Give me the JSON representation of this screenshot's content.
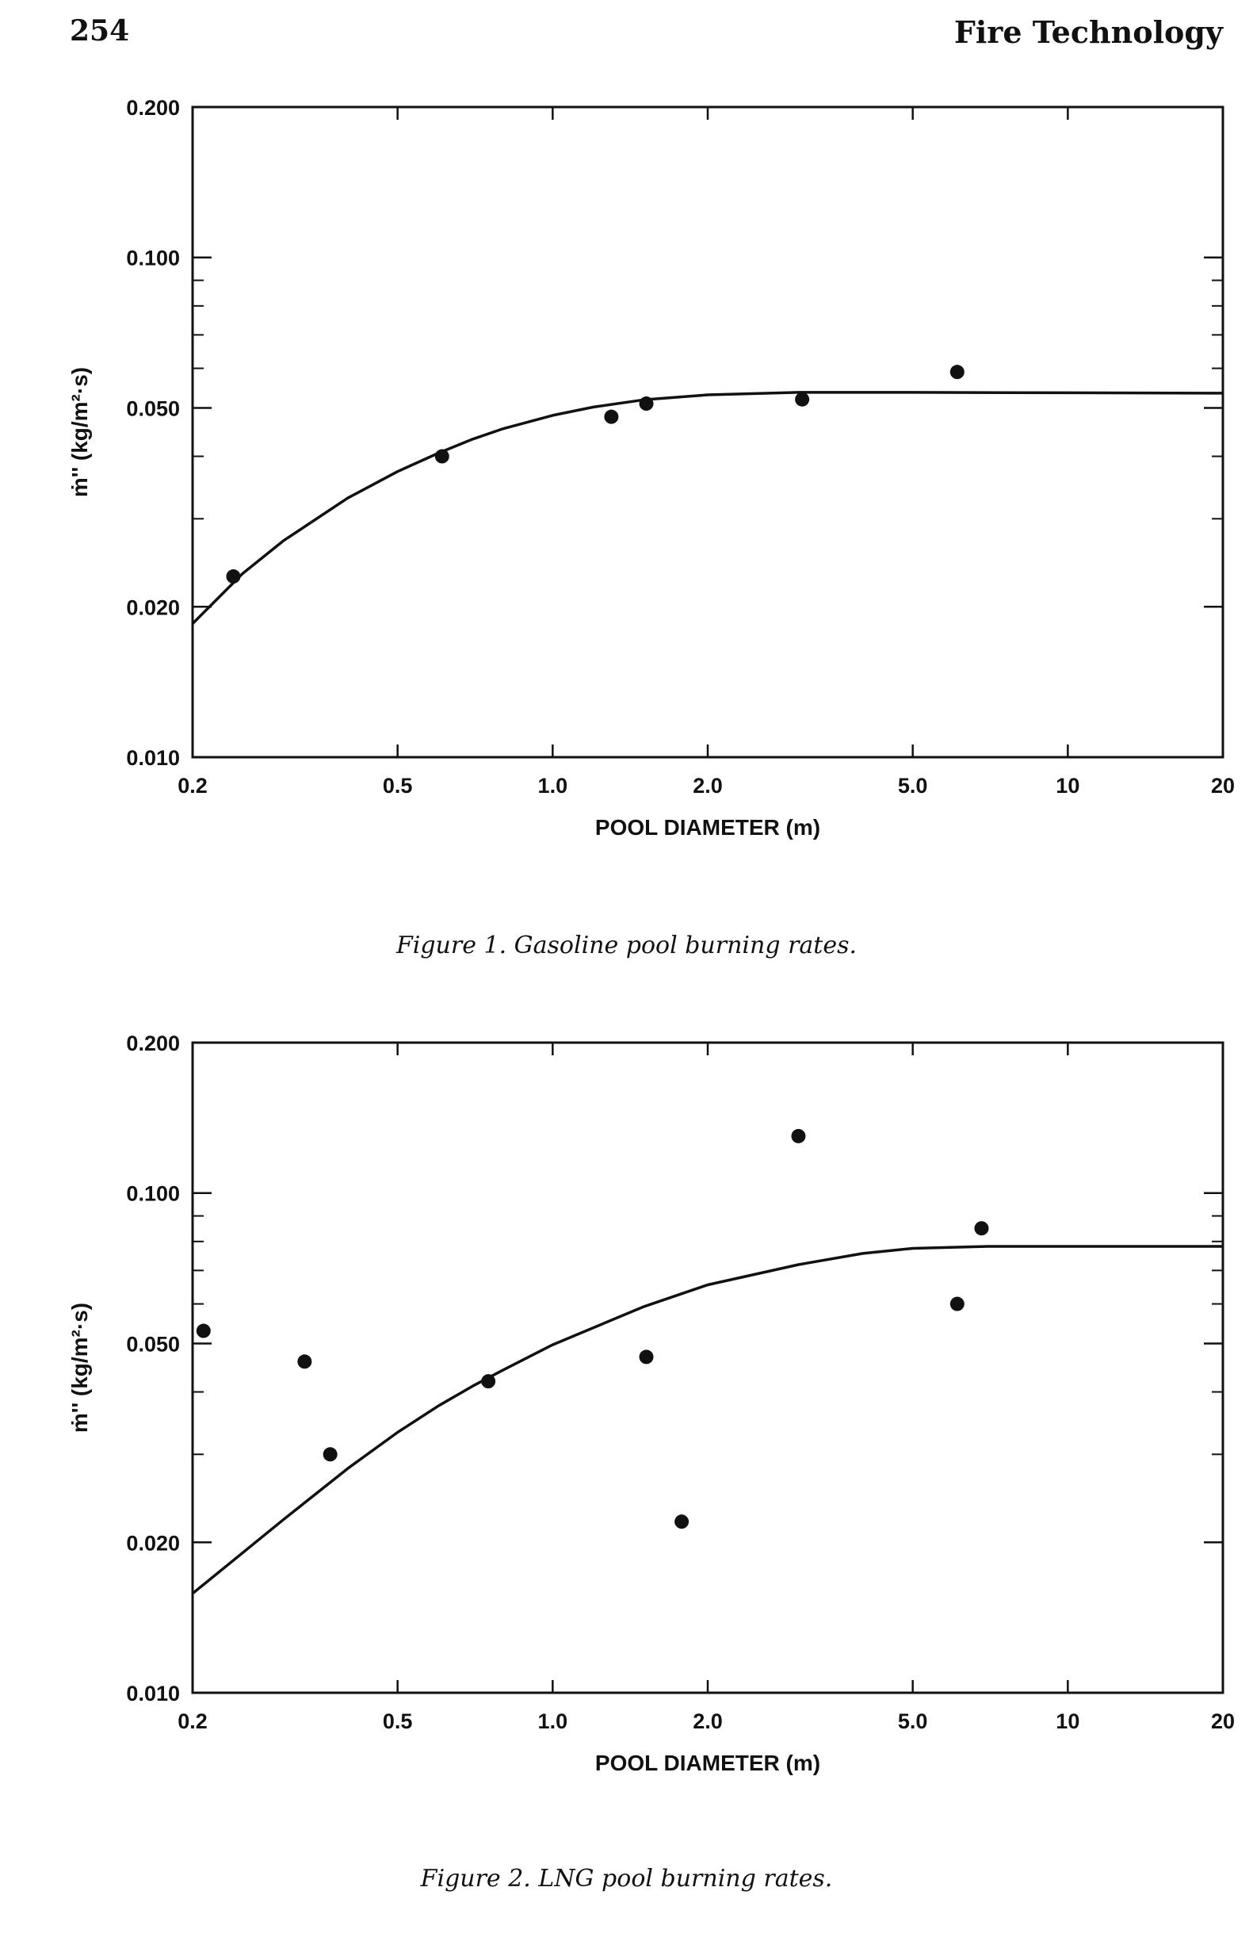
{
  "header": {
    "page_number": "254",
    "journal": "Fire Technology"
  },
  "figures": [
    {
      "caption": "Figure 1.  Gasoline pool burning rates."
    },
    {
      "caption": "Figure 2.  LNG pool burning rates."
    }
  ],
  "chart_data": [
    {
      "type": "scatter",
      "title": "",
      "xlabel": "POOL DIAMETER (m)",
      "ylabel": "ṁ'' (kg/m²·s)",
      "xscale": "log",
      "yscale": "log",
      "xlim": [
        0.2,
        20
      ],
      "ylim": [
        0.01,
        0.2
      ],
      "xticks": [
        0.2,
        0.5,
        1.0,
        2.0,
        5.0,
        10,
        20
      ],
      "xtick_labels": [
        "0.2",
        "0.5",
        "1.0",
        "2.0",
        "5.0",
        "10",
        "20"
      ],
      "yticks": [
        0.01,
        0.02,
        0.05,
        0.1,
        0.2
      ],
      "ytick_labels": [
        "0.010",
        "0.020",
        "0.050",
        "0.100",
        "0.200"
      ],
      "grid": false,
      "points": [
        {
          "x": 0.24,
          "y": 0.023
        },
        {
          "x": 0.61,
          "y": 0.04
        },
        {
          "x": 1.3,
          "y": 0.048
        },
        {
          "x": 1.52,
          "y": 0.051
        },
        {
          "x": 3.05,
          "y": 0.052
        },
        {
          "x": 6.1,
          "y": 0.059
        }
      ],
      "curve": {
        "x": [
          0.2,
          0.25,
          0.3,
          0.4,
          0.5,
          0.6,
          0.7,
          0.8,
          1.0,
          1.2,
          1.5,
          2.0,
          3.0,
          5.0,
          10,
          20
        ],
        "y": [
          0.0185,
          0.0233,
          0.0271,
          0.033,
          0.0373,
          0.0406,
          0.0433,
          0.0454,
          0.0483,
          0.0502,
          0.0519,
          0.0531,
          0.0537,
          0.0537,
          0.0536,
          0.0535
        ]
      }
    },
    {
      "type": "scatter",
      "title": "",
      "xlabel": "POOL DIAMETER (m)",
      "ylabel": "ṁ'' (kg/m²·s)",
      "xscale": "log",
      "yscale": "log",
      "xlim": [
        0.2,
        20
      ],
      "ylim": [
        0.01,
        0.2
      ],
      "xticks": [
        0.2,
        0.5,
        1.0,
        2.0,
        5.0,
        10,
        20
      ],
      "xtick_labels": [
        "0.2",
        "0.5",
        "1.0",
        "2.0",
        "5.0",
        "10",
        "20"
      ],
      "yticks": [
        0.01,
        0.02,
        0.05,
        0.1,
        0.2
      ],
      "ytick_labels": [
        "0.010",
        "0.020",
        "0.050",
        "0.100",
        "0.200"
      ],
      "grid": false,
      "points": [
        {
          "x": 0.21,
          "y": 0.053
        },
        {
          "x": 0.33,
          "y": 0.046
        },
        {
          "x": 0.37,
          "y": 0.03
        },
        {
          "x": 0.75,
          "y": 0.042
        },
        {
          "x": 1.52,
          "y": 0.047
        },
        {
          "x": 1.78,
          "y": 0.022
        },
        {
          "x": 3.0,
          "y": 0.13
        },
        {
          "x": 6.1,
          "y": 0.06
        },
        {
          "x": 6.8,
          "y": 0.085
        }
      ],
      "curve": {
        "x": [
          0.2,
          0.3,
          0.4,
          0.5,
          0.6,
          0.7,
          0.8,
          1.0,
          1.5,
          2.0,
          3.0,
          4.0,
          5.0,
          7.0,
          10,
          20
        ],
        "y": [
          0.0158,
          0.0222,
          0.0281,
          0.0332,
          0.0375,
          0.0411,
          0.0442,
          0.0497,
          0.0592,
          0.0655,
          0.0719,
          0.0757,
          0.0775,
          0.0782,
          0.0782,
          0.0782
        ]
      }
    }
  ]
}
